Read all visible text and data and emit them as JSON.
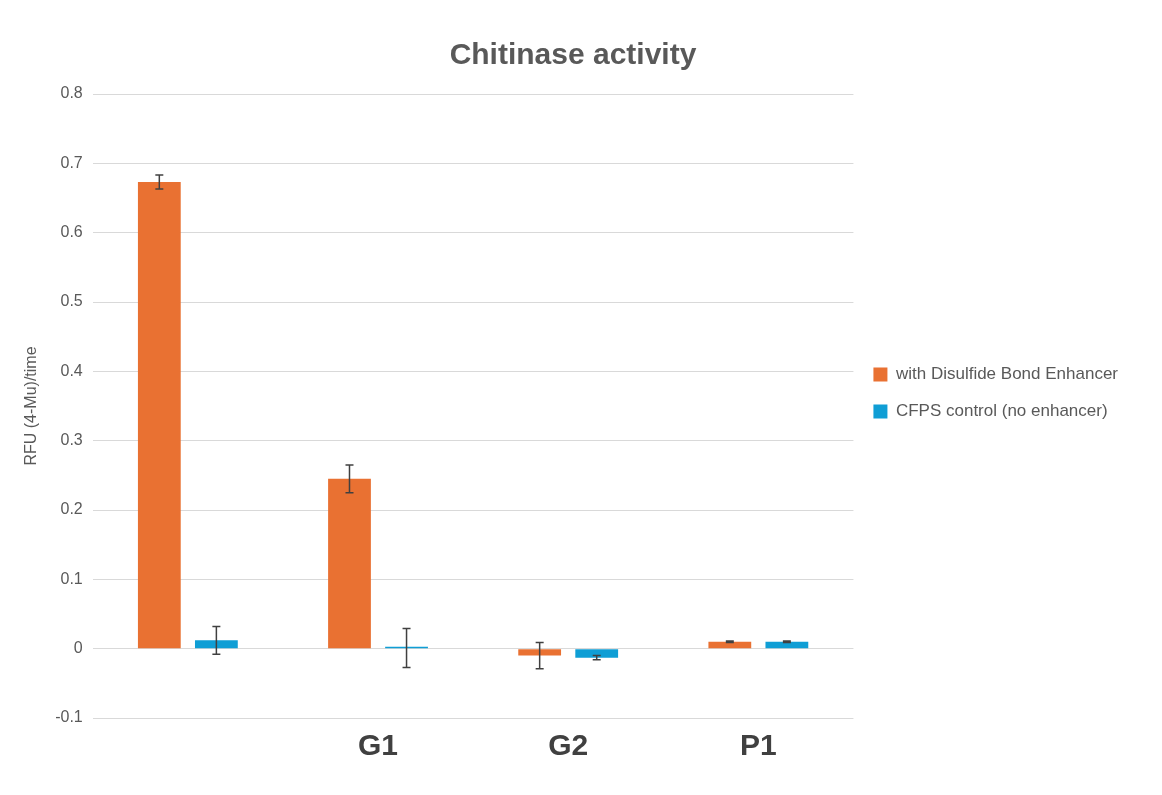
{
  "chart_data": {
    "type": "bar",
    "title": "Chitinase activity",
    "ylabel": "RFU (4-Mu)/time",
    "categories": [
      null,
      "G1",
      "G2",
      "P1"
    ],
    "series": [
      {
        "name": "with Disulfide Bond Enhancer",
        "color": "#e97132",
        "values": [
          0.673,
          0.245,
          -0.01,
          0.01
        ],
        "errors": [
          0.01,
          0.02,
          0.019,
          0.001
        ]
      },
      {
        "name": "CFPS control (no enhancer)",
        "color": "#0f9ed5",
        "values": [
          0.012,
          0.001,
          -0.013,
          0.01
        ],
        "errors": [
          0.02,
          0.028,
          0.003,
          0.001
        ]
      }
    ],
    "ylim": [
      -0.1,
      0.8
    ],
    "yticks": [
      -0.1,
      0,
      0.1,
      0.2,
      0.3,
      0.4,
      0.5,
      0.6,
      0.7,
      0.8
    ],
    "grid": "y",
    "legend": "right"
  }
}
